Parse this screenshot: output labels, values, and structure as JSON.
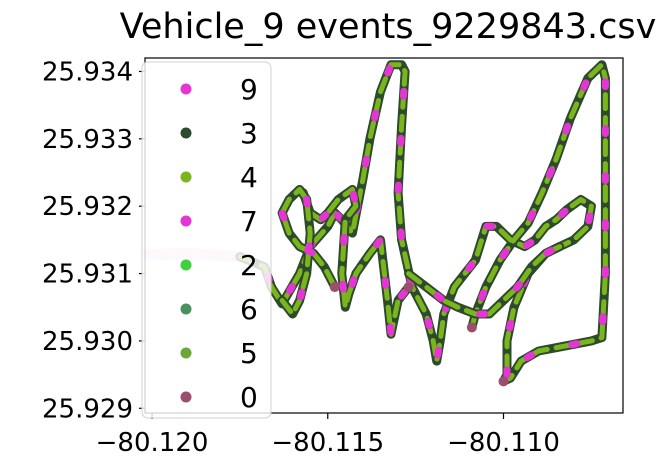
{
  "chart_data": {
    "type": "scatter",
    "title": "Vehicle_9 events_9229843.csv",
    "xlabel": "",
    "ylabel": "",
    "xlim": [
      -80.1202,
      -80.1066
    ],
    "ylim": [
      25.92893,
      25.9342
    ],
    "x_ticks": [
      -80.12,
      -80.115,
      -80.11
    ],
    "x_tick_labels": [
      "−80.120",
      "−80.115",
      "−80.110"
    ],
    "y_ticks": [
      25.929,
      25.93,
      25.931,
      25.932,
      25.933,
      25.934
    ],
    "y_tick_labels": [
      "25.929",
      "25.930",
      "25.931",
      "25.932",
      "25.933",
      "25.934"
    ],
    "grid": false,
    "legend_position": "upper-left",
    "route": [
      [
        -80.1201,
        25.93128
      ],
      [
        -80.119,
        25.9313
      ],
      [
        -80.1175,
        25.93125
      ],
      [
        -80.1168,
        25.9311
      ],
      [
        -80.1166,
        25.9308
      ],
      [
        -80.1163,
        25.93055
      ],
      [
        -80.1158,
        25.931
      ],
      [
        -80.1155,
        25.9314
      ],
      [
        -80.115,
        25.9317
      ],
      [
        -80.1148,
        25.9319
      ],
      [
        -80.1146,
        25.9318
      ],
      [
        -80.1143,
        25.9316
      ],
      [
        -80.114,
        25.9324
      ],
      [
        -80.1138,
        25.933
      ],
      [
        -80.1135,
        25.9337
      ],
      [
        -80.1132,
        25.9341
      ],
      [
        -80.1129,
        25.9341
      ],
      [
        -80.1128,
        25.934
      ],
      [
        -80.1129,
        25.9332
      ],
      [
        -80.113,
        25.9322
      ],
      [
        -80.1129,
        25.9315
      ],
      [
        -80.1126,
        25.9308
      ],
      [
        -80.1122,
        25.9304
      ],
      [
        -80.112,
        25.93
      ],
      [
        -80.1119,
        25.9297
      ],
      [
        -80.1118,
        25.93
      ],
      [
        -80.1117,
        25.9304
      ],
      [
        -80.1114,
        25.9308
      ],
      [
        -80.1111,
        25.931
      ],
      [
        -80.1108,
        25.9312
      ],
      [
        -80.1105,
        25.9317
      ],
      [
        -80.1102,
        25.9317
      ],
      [
        -80.1098,
        25.9315
      ],
      [
        -80.1094,
        25.9314
      ],
      [
        -80.1091,
        25.9315
      ],
      [
        -80.1088,
        25.9317
      ],
      [
        -80.1085,
        25.9318
      ],
      [
        -80.1082,
        25.93195
      ],
      [
        -80.1078,
        25.9321
      ],
      [
        -80.1075,
        25.932
      ],
      [
        -80.1076,
        25.9317
      ],
      [
        -80.108,
        25.9315
      ],
      [
        -80.1084,
        25.9314
      ],
      [
        -80.1088,
        25.9313
      ],
      [
        -80.1093,
        25.931
      ],
      [
        -80.1097,
        25.9305
      ],
      [
        -80.1099,
        25.93
      ],
      [
        -80.1099,
        25.9295
      ],
      [
        -80.11,
        25.9294
      ],
      [
        -80.1098,
        25.92945
      ],
      [
        -80.1095,
        25.9297
      ],
      [
        -80.109,
        25.92985
      ],
      [
        -80.1085,
        25.9299
      ],
      [
        -80.108,
        25.92995
      ],
      [
        -80.1075,
        25.93
      ],
      [
        -80.1072,
        25.93005
      ],
      [
        -80.1071,
        25.931
      ],
      [
        -80.1071,
        25.932
      ],
      [
        -80.1071,
        25.933
      ],
      [
        -80.1071,
        25.9339
      ],
      [
        -80.1072,
        25.9341
      ],
      [
        -80.1076,
        25.9339
      ],
      [
        -80.1081,
        25.9333
      ],
      [
        -80.1085,
        25.9327
      ],
      [
        -80.1089,
        25.9322
      ],
      [
        -80.1093,
        25.93175
      ],
      [
        -80.1097,
        25.9315
      ],
      [
        -80.1101,
        25.9312
      ],
      [
        -80.1105,
        25.9308
      ],
      [
        -80.1108,
        25.9304
      ],
      [
        -80.1109,
        25.9302
      ]
    ],
    "route2": [
      [
        -80.1127,
        25.931
      ],
      [
        -80.1122,
        25.9308
      ],
      [
        -80.1117,
        25.9306
      ],
      [
        -80.1113,
        25.9305
      ],
      [
        -80.1108,
        25.9304
      ],
      [
        -80.1104,
        25.9304
      ],
      [
        -80.11,
        25.9306
      ],
      [
        -80.1096,
        25.9308
      ],
      [
        -80.1092,
        25.9311
      ],
      [
        -80.1088,
        25.9313
      ],
      [
        -80.1084,
        25.9314
      ]
    ],
    "route3": [
      [
        -80.1157,
        25.9322
      ],
      [
        -80.1155,
        25.9319
      ],
      [
        -80.1152,
        25.9318
      ],
      [
        -80.115,
        25.9319
      ],
      [
        -80.1147,
        25.9321
      ],
      [
        -80.1143,
        25.93225
      ],
      [
        -80.1142,
        25.932
      ],
      [
        -80.1145,
        25.9318
      ],
      [
        -80.1146,
        25.931
      ],
      [
        -80.1145,
        25.9305
      ],
      [
        -80.1144,
        25.9307
      ],
      [
        -80.1142,
        25.931
      ],
      [
        -80.1138,
        25.9313
      ],
      [
        -80.1135,
        25.9315
      ],
      [
        -80.1133,
        25.9306
      ],
      [
        -80.1132,
        25.9301
      ],
      [
        -80.113,
        25.9306
      ],
      [
        -80.1127,
        25.9308
      ]
    ],
    "route4": [
      [
        -80.1163,
        25.9306
      ],
      [
        -80.116,
        25.9304
      ],
      [
        -80.1158,
        25.9306
      ],
      [
        -80.1156,
        25.931
      ],
      [
        -80.1155,
        25.9316
      ],
      [
        -80.1156,
        25.9321
      ],
      [
        -80.1158,
        25.93225
      ],
      [
        -80.1161,
        25.9321
      ],
      [
        -80.1163,
        25.9319
      ],
      [
        -80.1161,
        25.9316
      ],
      [
        -80.1158,
        25.9314
      ],
      [
        -80.1154,
        25.9313
      ],
      [
        -80.1151,
        25.9311
      ],
      [
        -80.1148,
        25.9308
      ]
    ],
    "series": [
      {
        "name": "9",
        "color": "#e535d3"
      },
      {
        "name": "3",
        "color": "#2d4a2d"
      },
      {
        "name": "4",
        "color": "#7ab51d"
      },
      {
        "name": "7",
        "color": "#e535d3"
      },
      {
        "name": "2",
        "color": "#3dd13d"
      },
      {
        "name": "6",
        "color": "#4a9060"
      },
      {
        "name": "5",
        "color": "#6aa836"
      },
      {
        "name": "0",
        "color": "#9b4f6e"
      }
    ]
  }
}
